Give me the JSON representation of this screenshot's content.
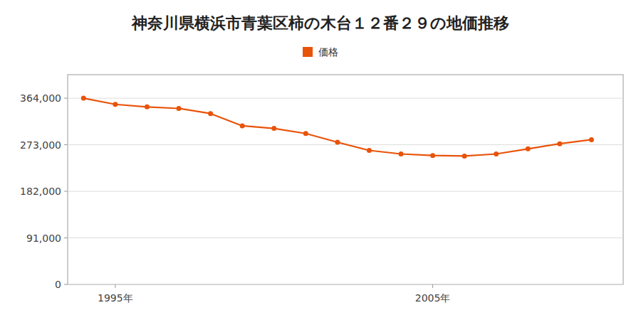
{
  "chart_data": {
    "type": "line",
    "title": "神奈川県横浜市青葉区柿の木台１２番２９の地価推移",
    "x": [
      1994,
      1995,
      1996,
      1997,
      1998,
      1999,
      2000,
      2001,
      2002,
      2003,
      2004,
      2005,
      2006,
      2007,
      2008,
      2009,
      2010
    ],
    "series": [
      {
        "name": "価格",
        "color": "#E8530A",
        "marker": "circle",
        "line_style": "solid",
        "values": [
          364000,
          352000,
          347000,
          344000,
          334000,
          310000,
          305000,
          295000,
          278000,
          262000,
          255000,
          252000,
          251000,
          255000,
          265000,
          275000,
          283000
        ]
      }
    ],
    "xlim": [
      1993.5,
      2011.0
    ],
    "xticks": [
      {
        "value": 1995,
        "label": "1995年"
      },
      {
        "value": 2005,
        "label": "2005年"
      }
    ],
    "ylim": [
      0,
      410000
    ],
    "yticks": [
      0,
      {
        "value": 91000,
        "label": "91,000"
      },
      {
        "value": 182000,
        "label": "182,000"
      },
      {
        "value": 273000,
        "label": "273,000"
      },
      {
        "value": 364000,
        "label": "364,000"
      }
    ],
    "grid": true,
    "legend": "top"
  }
}
